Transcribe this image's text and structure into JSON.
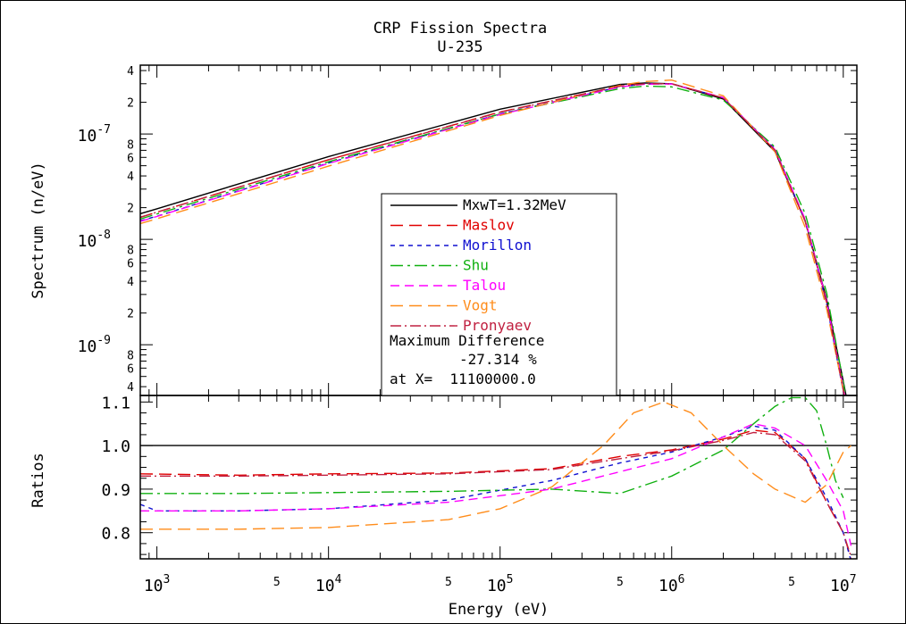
{
  "chart_data": {
    "type": "line",
    "title": "CRP Fission Spectra",
    "subtitle": "U-235",
    "xlabel": "Energy (eV)",
    "x_scale": "log",
    "xlim": [
      800,
      12000000
    ],
    "x_ticks": [
      "10^3",
      "10^4",
      "10^5",
      "10^6",
      "10^7"
    ],
    "x_minor_labels": [
      "5",
      "5",
      "5",
      "5"
    ],
    "top_panel": {
      "ylabel": "Spectrum (n/eV)",
      "y_scale": "log",
      "ylim": [
        3.3e-10,
        4.5e-07
      ],
      "y_major_ticks": [
        "10^-7",
        "10^-8",
        "10^-9"
      ],
      "y_minor_labels": [
        "4",
        "2",
        "8",
        "6",
        "4",
        "2",
        "8",
        "6",
        "4",
        "2",
        "8",
        "6",
        "4"
      ],
      "series": [
        {
          "name": "MxwT=1.32MeV",
          "color": "#000000",
          "dash": "solid",
          "x": [
            800,
            1000,
            10000,
            100000,
            500000,
            700000,
            1000000,
            2000000,
            4000000,
            6000000,
            8000000,
            10000000,
            11100000
          ],
          "y": [
            1.75e-08,
            1.95e-08,
            6.1e-08,
            1.72e-07,
            2.95e-07,
            3.05e-07,
            3e-07,
            2.15e-07,
            6.8e-08,
            1.5e-08,
            2.7e-09,
            4.5e-10,
            1.9e-10
          ]
        },
        {
          "name": "Maslov",
          "color": "#e00000",
          "dash": "long",
          "x": [
            800,
            1000,
            10000,
            100000,
            500000,
            700000,
            1000000,
            2000000,
            4000000,
            6000000,
            8000000,
            10000000,
            11100000
          ],
          "y": [
            1.62e-08,
            1.81e-08,
            5.7e-08,
            1.62e-07,
            2.85e-07,
            3e-07,
            3e-07,
            2.2e-07,
            7e-08,
            1.48e-08,
            2.5e-09,
            3.8e-10,
            1.4e-10
          ]
        },
        {
          "name": "Morillon",
          "color": "#1010d0",
          "dash": "short",
          "x": [
            800,
            1000,
            10000,
            100000,
            500000,
            700000,
            1000000,
            2000000,
            4000000,
            6000000,
            8000000,
            10000000,
            11100000
          ],
          "y": [
            1.5e-08,
            1.66e-08,
            5.3e-08,
            1.55e-07,
            2.8e-07,
            2.98e-07,
            3e-07,
            2.2e-07,
            7.2e-08,
            1.5e-08,
            2.45e-09,
            3.6e-10,
            1.4e-10
          ]
        },
        {
          "name": "Shu",
          "color": "#10b010",
          "dash": "dashdot",
          "x": [
            800,
            1000,
            10000,
            100000,
            500000,
            700000,
            1000000,
            2000000,
            4000000,
            6000000,
            8000000,
            10000000,
            11100000
          ],
          "y": [
            1.56e-08,
            1.74e-08,
            5.45e-08,
            1.55e-07,
            2.7e-07,
            2.85e-07,
            2.8e-07,
            2.1e-07,
            7.5e-08,
            1.75e-08,
            3.1e-09,
            4.4e-10,
            1.5e-10
          ]
        },
        {
          "name": "Talou",
          "color": "#ff00ff",
          "dash": "medium",
          "x": [
            800,
            1000,
            10000,
            100000,
            500000,
            700000,
            1000000,
            2000000,
            4000000,
            6000000,
            8000000,
            10000000,
            11100000
          ],
          "y": [
            1.48e-08,
            1.65e-08,
            5.25e-08,
            1.53e-07,
            2.8e-07,
            2.97e-07,
            2.98e-07,
            2.22e-07,
            7.1e-08,
            1.55e-08,
            2.6e-09,
            3.9e-10,
            1.5e-10
          ]
        },
        {
          "name": "Vogt",
          "color": "#ff8c1a",
          "dash": "long",
          "x": [
            800,
            1000,
            10000,
            100000,
            500000,
            700000,
            1000000,
            2000000,
            4000000,
            6000000,
            8000000,
            10000000,
            11100000
          ],
          "y": [
            1.41e-08,
            1.57e-08,
            4.95e-08,
            1.5e-07,
            2.9e-07,
            3.15e-07,
            3.25e-07,
            2.3e-07,
            6.8e-08,
            1.3e-08,
            2.2e-09,
            3.7e-10,
            1.4e-10
          ]
        },
        {
          "name": "Pronyaev",
          "color": "#c02040",
          "dash": "dashdot2",
          "x": [
            800,
            1000,
            10000,
            100000,
            500000,
            700000,
            1000000,
            2000000,
            4000000,
            6000000,
            8000000,
            10000000,
            11100000
          ],
          "y": [
            1.62e-08,
            1.81e-08,
            5.7e-08,
            1.61e-07,
            2.85e-07,
            3e-07,
            3e-07,
            2.2e-07,
            7e-08,
            1.48e-08,
            2.5e-09,
            3.7e-10,
            1.35e-10
          ]
        }
      ],
      "legend_placement": "center",
      "annotation": {
        "line1": "Maximum Difference",
        "line2": "-27.314 %",
        "line3": "at X=  11100000.0"
      }
    },
    "bottom_panel": {
      "ylabel": "Ratios",
      "y_scale": "linear",
      "ylim": [
        0.74,
        1.115
      ],
      "y_ticks": [
        "0.8",
        "0.9",
        "1.0",
        "1.1"
      ],
      "reference_line": 1.0,
      "series": [
        {
          "name": "MxwT=1.32MeV",
          "color": "#000000",
          "dash": "solid",
          "x": [
            800,
            12000000
          ],
          "y": [
            1.0,
            1.0
          ]
        },
        {
          "name": "Maslov",
          "color": "#e00000",
          "dash": "long",
          "x": [
            800,
            3000,
            10000,
            50000,
            200000,
            500000,
            1000000,
            2000000,
            3000000,
            4000000,
            6000000,
            8000000,
            10000000,
            11100000
          ],
          "y": [
            0.935,
            0.932,
            0.935,
            0.937,
            0.947,
            0.975,
            0.99,
            1.015,
            1.035,
            1.03,
            0.97,
            0.87,
            0.8,
            0.74
          ]
        },
        {
          "name": "Morillon",
          "color": "#1010d0",
          "dash": "short",
          "x": [
            800,
            1000,
            3000,
            10000,
            50000,
            200000,
            500000,
            1000000,
            2000000,
            3000000,
            4000000,
            6000000,
            8000000,
            10000000,
            11100000
          ],
          "y": [
            0.865,
            0.85,
            0.85,
            0.855,
            0.875,
            0.92,
            0.96,
            0.985,
            1.02,
            1.045,
            1.035,
            0.97,
            0.88,
            0.8,
            0.735
          ]
        },
        {
          "name": "Shu",
          "color": "#10b010",
          "dash": "dashdot",
          "x": [
            800,
            3000,
            10000,
            50000,
            200000,
            500000,
            1000000,
            2000000,
            3000000,
            4000000,
            5000000,
            6000000,
            7000000,
            8000000,
            9000000,
            10000000
          ],
          "y": [
            0.89,
            0.89,
            0.892,
            0.895,
            0.9,
            0.89,
            0.93,
            0.99,
            1.05,
            1.09,
            1.11,
            1.11,
            1.08,
            1.0,
            0.92,
            0.88
          ]
        },
        {
          "name": "Talou",
          "color": "#ff00ff",
          "dash": "medium",
          "x": [
            800,
            3000,
            10000,
            50000,
            200000,
            500000,
            1000000,
            2000000,
            3000000,
            4000000,
            6000000,
            8000000,
            10000000,
            11100000
          ],
          "y": [
            0.85,
            0.85,
            0.855,
            0.87,
            0.9,
            0.94,
            0.97,
            1.02,
            1.05,
            1.04,
            1.0,
            0.92,
            0.85,
            0.77
          ]
        },
        {
          "name": "Vogt",
          "color": "#ff8c1a",
          "dash": "long",
          "x": [
            800,
            3000,
            10000,
            50000,
            100000,
            200000,
            400000,
            600000,
            900000,
            1300000,
            2000000,
            3000000,
            4000000,
            6000000,
            8000000,
            10000000,
            11100000
          ],
          "y": [
            0.808,
            0.808,
            0.812,
            0.83,
            0.855,
            0.905,
            1.0,
            1.075,
            1.1,
            1.075,
            1.0,
            0.935,
            0.9,
            0.87,
            0.91,
            0.985,
            1.0
          ]
        },
        {
          "name": "Pronyaev",
          "color": "#c02040",
          "dash": "dashdot2",
          "x": [
            800,
            3000,
            10000,
            50000,
            200000,
            500000,
            1000000,
            2000000,
            3000000,
            4000000,
            6000000,
            8000000,
            10000000,
            11100000
          ],
          "y": [
            0.93,
            0.93,
            0.932,
            0.935,
            0.945,
            0.97,
            0.988,
            1.012,
            1.03,
            1.025,
            0.965,
            0.87,
            0.8,
            0.745
          ]
        }
      ]
    }
  }
}
